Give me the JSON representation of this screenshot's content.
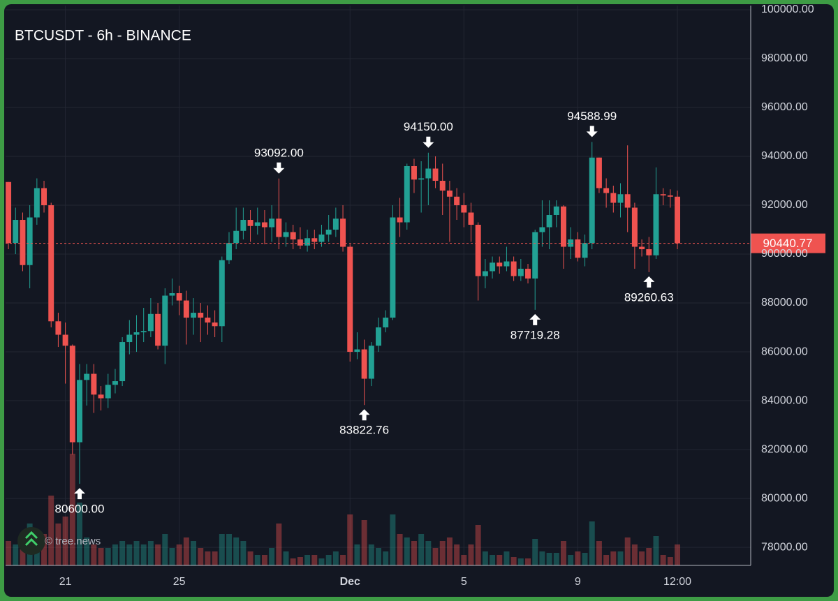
{
  "chart_data": {
    "type": "candlestick",
    "title": "BTCUSDT - 6h - BINANCE",
    "watermark": "© tree.news",
    "up_color": "#22a194",
    "down_color": "#ef5350",
    "open": [
      92950,
      90450,
      91400,
      89550,
      91500,
      92700,
      92000,
      87250,
      86700,
      86250,
      82300,
      84850,
      85100,
      84250,
      84100,
      84650,
      84800,
      86400,
      86700,
      86800,
      86850,
      87550,
      86250,
      88300,
      88400,
      88100,
      87400,
      87600,
      87400,
      87200,
      87050,
      89750,
      90450,
      90950,
      91400,
      91150,
      91300,
      91100,
      91450,
      90700,
      90900,
      90600,
      90350,
      90650,
      90500,
      90800,
      91000,
      91450,
      90300,
      86000,
      86100,
      84900,
      86250,
      87000,
      87400,
      91500,
      91300,
      93600,
      93050,
      93100,
      93500,
      93000,
      92600,
      92350,
      92000,
      91700,
      91200,
      89100,
      89300,
      89650,
      89500,
      89700,
      89100,
      89400,
      89000,
      90900,
      91100,
      91600,
      91950,
      90300,
      90600,
      89850,
      90450,
      93950,
      92700,
      92500,
      92100,
      92450,
      91900,
      90300,
      90200,
      89950,
      92450,
      92400,
      92350
    ],
    "high": [
      92950,
      91900,
      91700,
      92000,
      93100,
      93000,
      92100,
      87600,
      87200,
      86300,
      85500,
      85500,
      85500,
      84600,
      85100,
      85300,
      86600,
      87300,
      87500,
      87800,
      88200,
      88000,
      88600,
      89000,
      88700,
      88500,
      88200,
      88000,
      87900,
      87700,
      89900,
      90900,
      91900,
      91900,
      91800,
      91900,
      91800,
      92000,
      93092,
      91300,
      91200,
      91100,
      91000,
      91000,
      91200,
      91600,
      91900,
      92000,
      90400,
      86800,
      86500,
      86400,
      87400,
      87700,
      92000,
      92300,
      93700,
      93900,
      93800,
      94150,
      94000,
      93700,
      93000,
      92700,
      92500,
      92100,
      91300,
      89800,
      89900,
      89900,
      90300,
      89900,
      89800,
      89600,
      91000,
      92200,
      92200,
      92200,
      92000,
      91100,
      90900,
      90800,
      94588.99,
      93950,
      93100,
      92800,
      92900,
      94450,
      92100,
      90600,
      90700,
      93550,
      92700,
      92650,
      92600
    ],
    "low": [
      90200,
      90000,
      89300,
      88600,
      91200,
      91700,
      87000,
      86200,
      84700,
      81800,
      80600,
      83800,
      83500,
      83600,
      83700,
      84300,
      84600,
      85900,
      86000,
      86400,
      86600,
      86100,
      85500,
      87900,
      87500,
      86300,
      86700,
      86400,
      86700,
      86600,
      86400,
      89600,
      90200,
      90600,
      90500,
      90800,
      90400,
      90500,
      90200,
      90300,
      90200,
      90200,
      90100,
      90200,
      90300,
      90500,
      90700,
      90100,
      85600,
      85700,
      83822.76,
      84600,
      86000,
      86800,
      87300,
      90700,
      91000,
      92500,
      91700,
      92000,
      92700,
      91600,
      90500,
      91400,
      91100,
      90500,
      88100,
      88600,
      89000,
      89200,
      89300,
      88900,
      88900,
      88800,
      87719.28,
      90300,
      90200,
      91100,
      89400,
      89800,
      89700,
      89500,
      90200,
      92500,
      91900,
      91700,
      91500,
      90900,
      89400,
      89900,
      89260.63,
      89800,
      92000,
      91900,
      90200
    ],
    "close": [
      90450,
      91400,
      89550,
      91500,
      92700,
      92000,
      87250,
      86700,
      86250,
      82300,
      84850,
      85100,
      84250,
      84100,
      84650,
      84800,
      86400,
      86700,
      86800,
      86850,
      87550,
      86250,
      88300,
      88400,
      88100,
      87400,
      87600,
      87400,
      87200,
      87050,
      89750,
      90450,
      90950,
      91400,
      91150,
      91300,
      91100,
      91450,
      90700,
      90900,
      90600,
      90350,
      90650,
      90500,
      90800,
      91000,
      91450,
      90300,
      86000,
      86100,
      84900,
      86250,
      87000,
      87400,
      91500,
      91300,
      93600,
      93050,
      93100,
      93500,
      93000,
      92600,
      92350,
      92000,
      91700,
      91200,
      89100,
      89300,
      89650,
      89500,
      89700,
      89100,
      89400,
      89000,
      90900,
      91100,
      91600,
      91950,
      90300,
      90600,
      89850,
      90450,
      93950,
      92700,
      92500,
      92100,
      92450,
      91900,
      90300,
      90200,
      89950,
      92450,
      92400,
      92350,
      90440.77
    ],
    "volume": [
      7000,
      6000,
      9000,
      12000,
      8000,
      9000,
      20000,
      12000,
      14000,
      32000,
      18000,
      8000,
      6000,
      5000,
      5000,
      6000,
      7000,
      6000,
      7000,
      6000,
      7000,
      6000,
      9000,
      5000,
      6000,
      8000,
      7000,
      5000,
      4000,
      4000,
      9000,
      9000,
      8000,
      7000,
      4000,
      3000,
      3000,
      5000,
      12000,
      4000,
      2000,
      2400,
      3000,
      3000,
      2000,
      3000,
      4000,
      3000,
      14600,
      6000,
      13000,
      6000,
      5000,
      4000,
      14600,
      9000,
      8000,
      7000,
      9000,
      7000,
      5000,
      7000,
      8000,
      6000,
      3000,
      6000,
      11600,
      4000,
      3000,
      3000,
      4000,
      2400,
      2000,
      2000,
      7600,
      4000,
      3600,
      3600,
      7000,
      3000,
      4000,
      3600,
      12600,
      7000,
      3000,
      4000,
      4000,
      8000,
      6000,
      4000,
      5000,
      8400,
      3000,
      2400,
      6000
    ],
    "vlim": [
      0,
      50000
    ],
    "xlim": [
      -0.4,
      104.3
    ],
    "xticks": [
      {
        "value": 8,
        "label": "21"
      },
      {
        "value": 24,
        "label": "25"
      },
      {
        "value": 48,
        "label": "Dec",
        "bold": true
      },
      {
        "value": 64,
        "label": "5"
      },
      {
        "value": 80,
        "label": "9"
      },
      {
        "value": 94,
        "label": "12:00"
      }
    ],
    "ylim": [
      77260,
      100170
    ],
    "yticks": [
      {
        "value": 78000,
        "label": "78000.00"
      },
      {
        "value": 80000,
        "label": "80000.00"
      },
      {
        "value": 82000,
        "label": "82000.00"
      },
      {
        "value": 84000,
        "label": "84000.00"
      },
      {
        "value": 86000,
        "label": "86000.00"
      },
      {
        "value": 88000,
        "label": "88000.00"
      },
      {
        "value": 90000,
        "label": "90000.00"
      },
      {
        "value": 92000,
        "label": "92000.00"
      },
      {
        "value": 94000,
        "label": "94000.00"
      },
      {
        "value": 96000,
        "label": "96000.00"
      },
      {
        "value": 98000,
        "label": "98000.00"
      },
      {
        "value": 100000,
        "label": "100000.00"
      }
    ],
    "grid": true,
    "last_price": 90440.77,
    "annotations": [
      {
        "x": 10,
        "value": 80600,
        "label": "80600.00",
        "direction": "up"
      },
      {
        "x": 38,
        "value": 93092,
        "label": "93092.00",
        "direction": "down"
      },
      {
        "x": 50,
        "value": 83822.76,
        "label": "83822.76",
        "direction": "up"
      },
      {
        "x": 59,
        "value": 94150,
        "label": "94150.00",
        "direction": "down"
      },
      {
        "x": 74,
        "value": 87719.28,
        "label": "87719.28",
        "direction": "up"
      },
      {
        "x": 82,
        "value": 94588.99,
        "label": "94588.99",
        "direction": "down"
      },
      {
        "x": 90,
        "value": 89260.63,
        "label": "89260.63",
        "direction": "up"
      }
    ]
  }
}
